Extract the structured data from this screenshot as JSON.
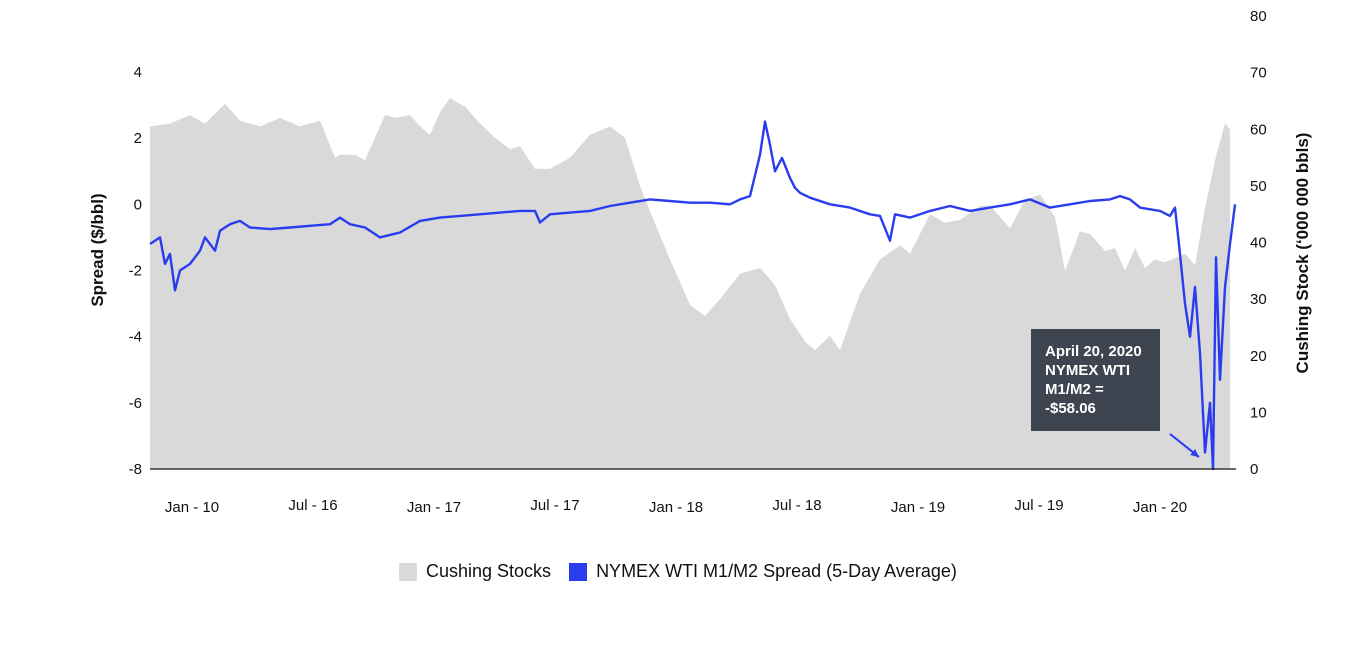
{
  "chart_data": {
    "type": "area",
    "x_tick_labels": [
      "Jan - 10",
      "Jul - 16",
      "Jan - 17",
      "Jul - 17",
      "Jan - 18",
      "Jul - 18",
      "Jan - 19",
      "Jul - 19",
      "Jan - 20"
    ],
    "y_left": {
      "label": "Spread ($/bbl)",
      "ticks": [
        "4",
        "2",
        "0",
        "-2",
        "-4",
        "-6",
        "-8"
      ],
      "range": [
        -8,
        4
      ]
    },
    "y_right": {
      "label": "Cushing Stock (‘000 000 bbls)",
      "ticks": [
        "80",
        "70",
        "60",
        "50",
        "40",
        "30",
        "20",
        "10",
        "0"
      ],
      "range": [
        0,
        80
      ]
    },
    "grid": false,
    "legend_position": "bottom-center",
    "series": [
      {
        "name": "Cushing Stocks",
        "axis": "right",
        "kind": "area",
        "color": "#d9d9d9",
        "points": [
          [
            0.0,
            60.5
          ],
          [
            0.02,
            61.0
          ],
          [
            0.04,
            62.5
          ],
          [
            0.055,
            61.0
          ],
          [
            0.075,
            64.5
          ],
          [
            0.09,
            61.5
          ],
          [
            0.11,
            60.5
          ],
          [
            0.13,
            62.0
          ],
          [
            0.15,
            60.5
          ],
          [
            0.17,
            61.5
          ],
          [
            0.185,
            55.0
          ],
          [
            0.19,
            55.5
          ],
          [
            0.205,
            55.5
          ],
          [
            0.215,
            54.5
          ],
          [
            0.235,
            62.5
          ],
          [
            0.245,
            62.0
          ],
          [
            0.26,
            62.5
          ],
          [
            0.27,
            60.5
          ],
          [
            0.28,
            59.0
          ],
          [
            0.29,
            63.0
          ],
          [
            0.3,
            65.5
          ],
          [
            0.315,
            64.0
          ],
          [
            0.33,
            61.0
          ],
          [
            0.345,
            58.5
          ],
          [
            0.36,
            56.5
          ],
          [
            0.37,
            57.0
          ],
          [
            0.385,
            53.0
          ],
          [
            0.4,
            53.0
          ],
          [
            0.42,
            55.0
          ],
          [
            0.44,
            59.0
          ],
          [
            0.46,
            60.5
          ],
          [
            0.475,
            58.5
          ],
          [
            0.49,
            50.0
          ],
          [
            0.5,
            45.5
          ],
          [
            0.52,
            37.0
          ],
          [
            0.54,
            29.0
          ],
          [
            0.555,
            27.0
          ],
          [
            0.57,
            30.0
          ],
          [
            0.59,
            34.5
          ],
          [
            0.61,
            35.5
          ],
          [
            0.625,
            32.5
          ],
          [
            0.64,
            26.5
          ],
          [
            0.655,
            22.5
          ],
          [
            0.665,
            21.0
          ],
          [
            0.68,
            23.5
          ],
          [
            0.69,
            21.0
          ],
          [
            0.71,
            31.0
          ],
          [
            0.73,
            37.0
          ],
          [
            0.75,
            39.5
          ],
          [
            0.76,
            38.0
          ],
          [
            0.78,
            45.0
          ],
          [
            0.795,
            43.5
          ],
          [
            0.81,
            44.0
          ],
          [
            0.83,
            46.5
          ],
          [
            0.84,
            46.5
          ],
          [
            0.86,
            42.5
          ],
          [
            0.875,
            47.5
          ],
          [
            0.89,
            48.5
          ],
          [
            0.905,
            44.5
          ],
          [
            0.915,
            35.0
          ],
          [
            0.93,
            42.0
          ],
          [
            0.94,
            41.5
          ],
          [
            0.955,
            38.5
          ],
          [
            0.965,
            39.0
          ],
          [
            0.975,
            35.0
          ],
          [
            0.985,
            39.0
          ],
          [
            0.995,
            35.5
          ],
          [
            1.005,
            37.0
          ],
          [
            1.015,
            36.5
          ],
          [
            1.035,
            38.0
          ],
          [
            1.045,
            36.0
          ],
          [
            1.055,
            46.0
          ],
          [
            1.065,
            54.5
          ],
          [
            1.075,
            61.0
          ],
          [
            1.08,
            60.0
          ]
        ]
      },
      {
        "name": "NYMEX WTI M1/M2 Spread (5-Day Average)",
        "axis": "left",
        "kind": "line",
        "color": "#2a3cf0",
        "points": [
          [
            0.0,
            -1.2
          ],
          [
            0.01,
            -1.0
          ],
          [
            0.015,
            -1.8
          ],
          [
            0.02,
            -1.5
          ],
          [
            0.025,
            -2.6
          ],
          [
            0.03,
            -2.0
          ],
          [
            0.04,
            -1.8
          ],
          [
            0.05,
            -1.4
          ],
          [
            0.055,
            -1.0
          ],
          [
            0.065,
            -1.4
          ],
          [
            0.07,
            -0.8
          ],
          [
            0.08,
            -0.6
          ],
          [
            0.09,
            -0.5
          ],
          [
            0.1,
            -0.7
          ],
          [
            0.12,
            -0.75
          ],
          [
            0.14,
            -0.7
          ],
          [
            0.16,
            -0.65
          ],
          [
            0.18,
            -0.6
          ],
          [
            0.19,
            -0.4
          ],
          [
            0.2,
            -0.6
          ],
          [
            0.215,
            -0.7
          ],
          [
            0.23,
            -1.0
          ],
          [
            0.25,
            -0.85
          ],
          [
            0.27,
            -0.5
          ],
          [
            0.29,
            -0.4
          ],
          [
            0.31,
            -0.35
          ],
          [
            0.33,
            -0.3
          ],
          [
            0.35,
            -0.25
          ],
          [
            0.37,
            -0.2
          ],
          [
            0.385,
            -0.2
          ],
          [
            0.39,
            -0.55
          ],
          [
            0.4,
            -0.3
          ],
          [
            0.42,
            -0.25
          ],
          [
            0.44,
            -0.2
          ],
          [
            0.46,
            -0.05
          ],
          [
            0.48,
            0.05
          ],
          [
            0.5,
            0.15
          ],
          [
            0.52,
            0.1
          ],
          [
            0.54,
            0.05
          ],
          [
            0.56,
            0.05
          ],
          [
            0.58,
            0.0
          ],
          [
            0.59,
            0.15
          ],
          [
            0.6,
            0.25
          ],
          [
            0.61,
            1.5
          ],
          [
            0.615,
            2.5
          ],
          [
            0.62,
            1.8
          ],
          [
            0.625,
            1.0
          ],
          [
            0.632,
            1.4
          ],
          [
            0.64,
            0.8
          ],
          [
            0.645,
            0.5
          ],
          [
            0.65,
            0.35
          ],
          [
            0.66,
            0.2
          ],
          [
            0.68,
            0.0
          ],
          [
            0.7,
            -0.1
          ],
          [
            0.72,
            -0.3
          ],
          [
            0.73,
            -0.35
          ],
          [
            0.74,
            -1.1
          ],
          [
            0.745,
            -0.3
          ],
          [
            0.76,
            -0.4
          ],
          [
            0.78,
            -0.2
          ],
          [
            0.8,
            -0.05
          ],
          [
            0.82,
            -0.2
          ],
          [
            0.84,
            -0.1
          ],
          [
            0.86,
            0.0
          ],
          [
            0.88,
            0.15
          ],
          [
            0.9,
            -0.1
          ],
          [
            0.92,
            0.0
          ],
          [
            0.94,
            0.1
          ],
          [
            0.96,
            0.15
          ],
          [
            0.97,
            0.25
          ],
          [
            0.98,
            0.15
          ],
          [
            0.99,
            -0.1
          ],
          [
            1.0,
            -0.15
          ],
          [
            1.01,
            -0.2
          ],
          [
            1.02,
            -0.35
          ],
          [
            1.025,
            -0.1
          ],
          [
            1.03,
            -1.5
          ],
          [
            1.035,
            -3.0
          ],
          [
            1.04,
            -4.0
          ],
          [
            1.045,
            -2.5
          ],
          [
            1.05,
            -4.5
          ],
          [
            1.055,
            -7.5
          ],
          [
            1.06,
            -6.0
          ],
          [
            1.063,
            -8.0
          ],
          [
            1.066,
            -1.6
          ],
          [
            1.07,
            -5.3
          ],
          [
            1.075,
            -2.5
          ],
          [
            1.08,
            -1.2
          ],
          [
            1.085,
            0.0
          ]
        ]
      }
    ],
    "annotation": {
      "lines": [
        "April 20, 2020",
        "NYMEX WTI",
        "M1/M2 =",
        "-$58.06"
      ],
      "arrow_from": [
        0.95,
        -7.0
      ],
      "arrow_to": [
        0.975,
        -7.7
      ]
    }
  }
}
